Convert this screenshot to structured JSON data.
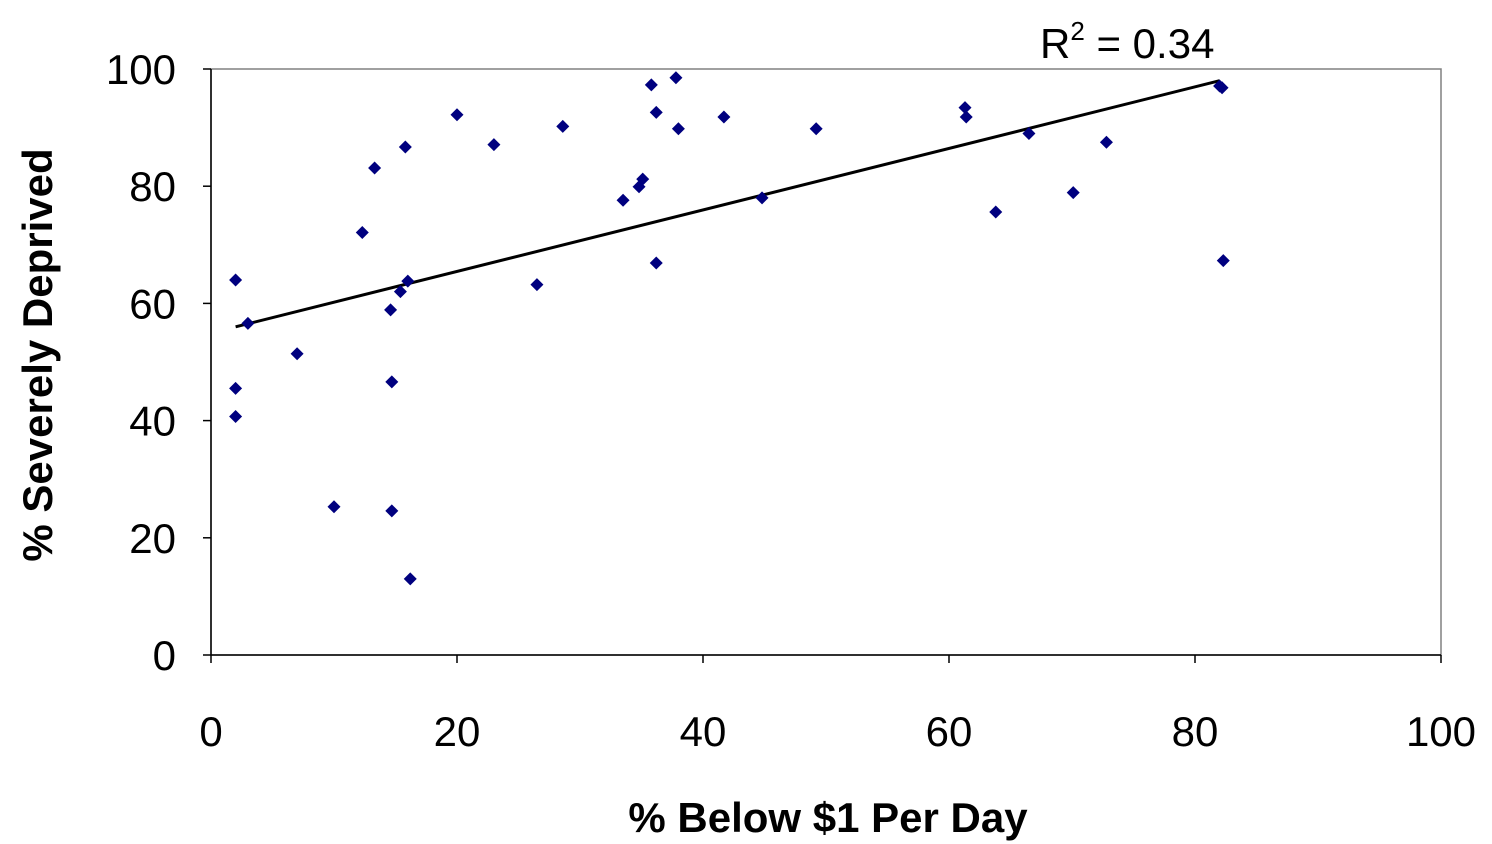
{
  "chart_data": {
    "type": "scatter",
    "title": "",
    "xlabel": "% Below $1 Per Day",
    "ylabel": "% Severely Deprived",
    "xlim": [
      0,
      100
    ],
    "ylim": [
      0,
      100
    ],
    "xticks": [
      "0",
      "20",
      "40",
      "60",
      "80",
      "100"
    ],
    "yticks": [
      "0",
      "20",
      "40",
      "60",
      "80",
      "100"
    ],
    "grid": false,
    "marker_color": "#00007F",
    "trendline_color": "#000000",
    "annotation": {
      "base": "R",
      "sup": "2",
      "rest": " = 0.34"
    },
    "trendline": {
      "type": "linear",
      "x": [
        2,
        82
      ],
      "y": [
        56,
        98
      ]
    },
    "points": [
      {
        "x": 2.0,
        "y": 64.0
      },
      {
        "x": 2.0,
        "y": 45.5
      },
      {
        "x": 2.0,
        "y": 40.7
      },
      {
        "x": 3.0,
        "y": 56.6
      },
      {
        "x": 7.0,
        "y": 51.4
      },
      {
        "x": 10.0,
        "y": 25.3
      },
      {
        "x": 12.3,
        "y": 72.1
      },
      {
        "x": 13.3,
        "y": 83.1
      },
      {
        "x": 14.6,
        "y": 58.9
      },
      {
        "x": 14.7,
        "y": 46.6
      },
      {
        "x": 14.7,
        "y": 24.6
      },
      {
        "x": 15.4,
        "y": 62.0
      },
      {
        "x": 15.8,
        "y": 86.7
      },
      {
        "x": 16.0,
        "y": 63.8
      },
      {
        "x": 16.2,
        "y": 13.0
      },
      {
        "x": 20.0,
        "y": 92.2
      },
      {
        "x": 23.0,
        "y": 87.1
      },
      {
        "x": 26.5,
        "y": 63.2
      },
      {
        "x": 28.6,
        "y": 90.2
      },
      {
        "x": 33.5,
        "y": 77.6
      },
      {
        "x": 34.8,
        "y": 79.9
      },
      {
        "x": 35.1,
        "y": 81.2
      },
      {
        "x": 35.8,
        "y": 97.3
      },
      {
        "x": 36.2,
        "y": 92.6
      },
      {
        "x": 36.2,
        "y": 66.9
      },
      {
        "x": 37.8,
        "y": 98.5
      },
      {
        "x": 38.0,
        "y": 89.8
      },
      {
        "x": 41.7,
        "y": 91.8
      },
      {
        "x": 44.8,
        "y": 78.0
      },
      {
        "x": 49.2,
        "y": 89.8
      },
      {
        "x": 61.3,
        "y": 93.4
      },
      {
        "x": 61.4,
        "y": 91.8
      },
      {
        "x": 63.8,
        "y": 75.6
      },
      {
        "x": 66.5,
        "y": 89.0
      },
      {
        "x": 70.1,
        "y": 78.9
      },
      {
        "x": 72.8,
        "y": 87.5
      },
      {
        "x": 82.0,
        "y": 97.1
      },
      {
        "x": 82.2,
        "y": 96.8
      },
      {
        "x": 82.3,
        "y": 67.3
      }
    ]
  }
}
